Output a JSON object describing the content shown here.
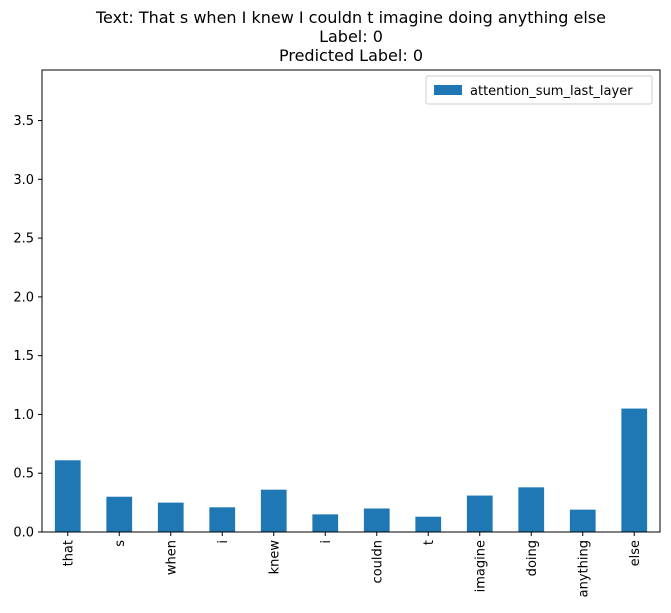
{
  "chart_data": {
    "type": "bar",
    "title_lines": [
      "Text: That s when I knew I couldn t imagine doing anything else",
      "Label: 0",
      "Predicted Label: 0"
    ],
    "xlabel": "",
    "ylabel": "",
    "categories": [
      "that",
      "s",
      "when",
      "i",
      "knew",
      "i",
      "couldn",
      "t",
      "imagine",
      "doing",
      "anything",
      "else"
    ],
    "series": [
      {
        "name": "attention_sum_last_layer",
        "color": "#1f77b4",
        "values": [
          0.61,
          0.3,
          0.25,
          0.21,
          0.36,
          0.15,
          0.2,
          0.13,
          0.31,
          0.38,
          0.19,
          1.05
        ]
      }
    ],
    "ylim": [
      0,
      3.93
    ],
    "yticks": [
      0.0,
      0.5,
      1.0,
      1.5,
      2.0,
      2.5,
      3.0,
      3.5
    ],
    "ytick_labels": [
      "0.0",
      "0.5",
      "1.0",
      "1.5",
      "2.0",
      "2.5",
      "3.0",
      "3.5"
    ],
    "grid": false,
    "legend_position": "top-right"
  }
}
